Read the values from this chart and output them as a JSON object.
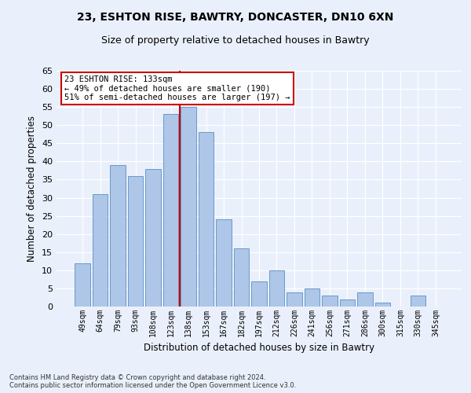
{
  "title1": "23, ESHTON RISE, BAWTRY, DONCASTER, DN10 6XN",
  "title2": "Size of property relative to detached houses in Bawtry",
  "xlabel": "Distribution of detached houses by size in Bawtry",
  "ylabel": "Number of detached properties",
  "categories": [
    "49sqm",
    "64sqm",
    "79sqm",
    "93sqm",
    "108sqm",
    "123sqm",
    "138sqm",
    "153sqm",
    "167sqm",
    "182sqm",
    "197sqm",
    "212sqm",
    "226sqm",
    "241sqm",
    "256sqm",
    "271sqm",
    "286sqm",
    "300sqm",
    "315sqm",
    "330sqm",
    "345sqm"
  ],
  "values": [
    12,
    31,
    39,
    36,
    38,
    53,
    55,
    48,
    24,
    16,
    7,
    10,
    4,
    5,
    3,
    2,
    4,
    1,
    0,
    3,
    0
  ],
  "bar_color": "#aec6e8",
  "bar_edge_color": "#5a8fc2",
  "highlight_bin_index": 5,
  "vline_color": "#cc0000",
  "annotation_line1": "23 ESHTON RISE: 133sqm",
  "annotation_line2": "← 49% of detached houses are smaller (190)",
  "annotation_line3": "51% of semi-detached houses are larger (197) →",
  "annotation_box_color": "#ffffff",
  "annotation_box_edge": "#cc0000",
  "ylim": [
    0,
    65
  ],
  "yticks": [
    0,
    5,
    10,
    15,
    20,
    25,
    30,
    35,
    40,
    45,
    50,
    55,
    60,
    65
  ],
  "footnote": "Contains HM Land Registry data © Crown copyright and database right 2024.\nContains public sector information licensed under the Open Government Licence v3.0.",
  "bg_color": "#eaf0fb",
  "grid_color": "#ffffff",
  "title_fontsize": 10,
  "subtitle_fontsize": 9,
  "bar_width": 0.85
}
